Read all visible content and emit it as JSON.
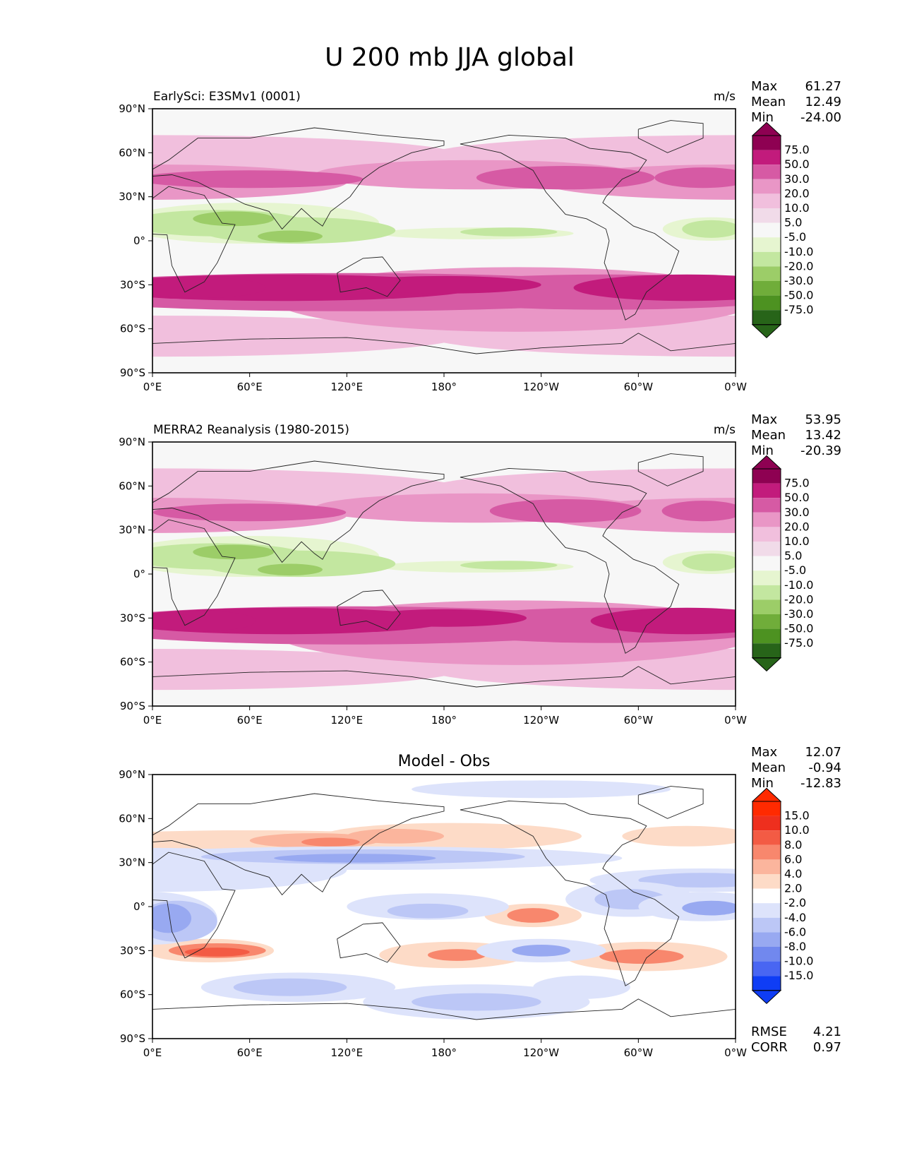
{
  "figure_title": "U 200 mb JJA global",
  "x_ticks": [
    "0°E",
    "60°E",
    "120°E",
    "180°",
    "120°W",
    "60°W",
    "0°W"
  ],
  "y_ticks": [
    "90°N",
    "60°N",
    "30°N",
    "0°",
    "30°S",
    "60°S",
    "90°S"
  ],
  "colors": {
    "fill_bg": "#f7f7f7",
    "pink_scale": [
      "#f7f7f7",
      "#f1dbe9",
      "#f1bfdd",
      "#e996c6",
      "#d65aa4",
      "#c21b7c",
      "#8e0152"
    ],
    "green_scale": [
      "#e6f5d0",
      "#c3e7a0",
      "#9ccd68",
      "#70ad3a",
      "#4d9221",
      "#276419"
    ],
    "diff_red": [
      "#fddbc7",
      "#fbb59d",
      "#f8876d",
      "#f35b44",
      "#ee2f1e",
      "#ff2a00"
    ],
    "diff_blue": [
      "#dde3fb",
      "#bcc7f6",
      "#98a9f1",
      "#7188ee",
      "#4966f2",
      "#0f3df5"
    ]
  },
  "chart_data": [
    {
      "type": "heatmap",
      "subtitle_left": "EarlySci: E3SMv1 (0001)",
      "units": "m/s",
      "stats": [
        {
          "label": "Max",
          "value": "61.27"
        },
        {
          "label": "Mean",
          "value": "12.49"
        },
        {
          "label": "Min",
          "value": "-24.00"
        }
      ],
      "colorbar_levels": [
        "75.0",
        "50.0",
        "30.0",
        "20.0",
        "10.0",
        "5.0",
        "-5.0",
        "-10.0",
        "-20.0",
        "-30.0",
        "-50.0",
        "-75.0"
      ],
      "x_range": [
        0,
        360
      ],
      "y_range": [
        -90,
        90
      ]
    },
    {
      "type": "heatmap",
      "subtitle_left": "MERRA2 Reanalysis (1980-2015)",
      "units": "m/s",
      "stats": [
        {
          "label": "Max",
          "value": "53.95"
        },
        {
          "label": "Mean",
          "value": "13.42"
        },
        {
          "label": "Min",
          "value": "-20.39"
        }
      ],
      "colorbar_levels": [
        "75.0",
        "50.0",
        "30.0",
        "20.0",
        "10.0",
        "5.0",
        "-5.0",
        "-10.0",
        "-20.0",
        "-30.0",
        "-50.0",
        "-75.0"
      ],
      "x_range": [
        0,
        360
      ],
      "y_range": [
        -90,
        90
      ]
    },
    {
      "type": "heatmap",
      "subtitle_center": "Model - Obs",
      "stats": [
        {
          "label": "Max",
          "value": "12.07"
        },
        {
          "label": "Mean",
          "value": "-0.94"
        },
        {
          "label": "Min",
          "value": "-12.83"
        }
      ],
      "extra_stats": [
        {
          "label": "RMSE",
          "value": "4.21"
        },
        {
          "label": "CORR",
          "value": "0.97"
        }
      ],
      "colorbar_levels": [
        "15.0",
        "10.0",
        "8.0",
        "6.0",
        "4.0",
        "2.0",
        "-2.0",
        "-4.0",
        "-6.0",
        "-8.0",
        "-10.0",
        "-15.0"
      ],
      "x_range": [
        0,
        360
      ],
      "y_range": [
        -90,
        90
      ]
    }
  ]
}
